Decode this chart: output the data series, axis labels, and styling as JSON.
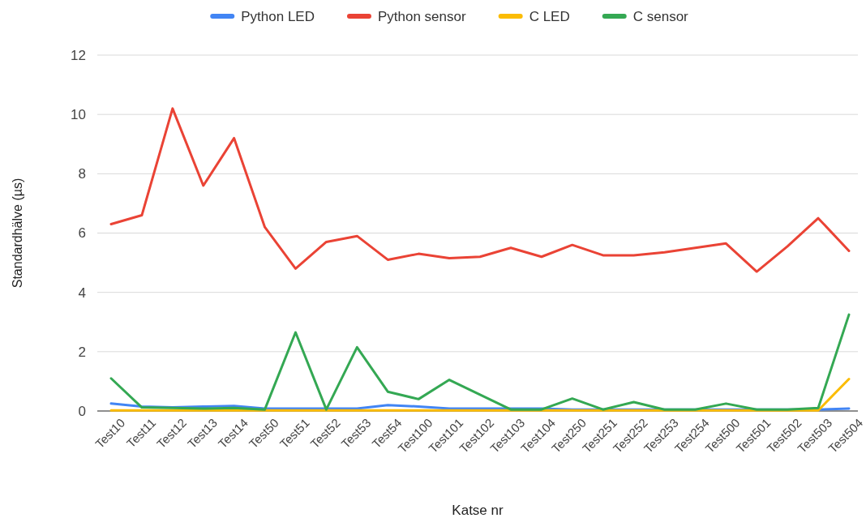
{
  "chart_data": {
    "type": "line",
    "xlabel": "Katse nr",
    "ylabel": "Standardhälve (µs)",
    "categories": [
      "Test10",
      "Test11",
      "Test12",
      "Test13",
      "Test14",
      "Test50",
      "Test51",
      "Test52",
      "Test53",
      "Test54",
      "Test100",
      "Test101",
      "Test102",
      "Test103",
      "Test104",
      "Test250",
      "Test251",
      "Test252",
      "Test253",
      "Test254",
      "Test500",
      "Test501",
      "Test502",
      "Test503",
      "Test504"
    ],
    "series": [
      {
        "name": "Python LED",
        "color": "#4285f4",
        "values": [
          0.25,
          0.15,
          0.12,
          0.15,
          0.17,
          0.08,
          0.08,
          0.08,
          0.08,
          0.2,
          0.15,
          0.08,
          0.08,
          0.08,
          0.08,
          0.05,
          0.05,
          0.05,
          0.05,
          0.05,
          0.05,
          0.05,
          0.05,
          0.05,
          0.08
        ]
      },
      {
        "name": "Python sensor",
        "color": "#ea4335",
        "values": [
          6.3,
          6.6,
          10.2,
          7.6,
          9.2,
          6.2,
          4.8,
          5.7,
          5.9,
          5.1,
          5.3,
          5.15,
          5.2,
          5.5,
          5.2,
          5.6,
          5.25,
          5.25,
          5.35,
          5.5,
          5.65,
          4.7,
          5.55,
          6.5,
          5.4
        ]
      },
      {
        "name": "C LED",
        "color": "#fbbc04",
        "values": [
          0.02,
          0.02,
          0.02,
          0.02,
          0.02,
          0.02,
          0.02,
          0.02,
          0.02,
          0.02,
          0.02,
          0.02,
          0.02,
          0.02,
          0.02,
          0.02,
          0.02,
          0.02,
          0.02,
          0.02,
          0.02,
          0.02,
          0.02,
          0.02,
          1.08
        ]
      },
      {
        "name": "C sensor",
        "color": "#34a853",
        "values": [
          1.1,
          0.12,
          0.1,
          0.08,
          0.1,
          0.05,
          2.65,
          0.05,
          2.15,
          0.65,
          0.4,
          1.05,
          0.55,
          0.05,
          0.05,
          0.42,
          0.05,
          0.3,
          0.05,
          0.05,
          0.25,
          0.05,
          0.05,
          0.1,
          3.25
        ]
      }
    ],
    "ylim": [
      0,
      12
    ],
    "yticks": [
      0,
      2,
      4,
      6,
      8,
      10,
      12
    ],
    "grid": "y",
    "legend": "top",
    "line_style": "solid",
    "marker": "none"
  }
}
